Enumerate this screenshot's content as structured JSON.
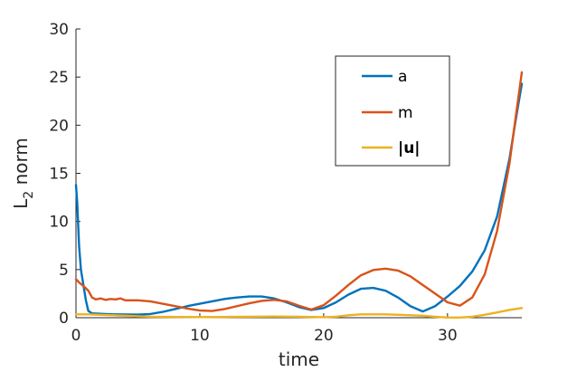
{
  "chart_data": {
    "type": "line",
    "xlabel": "time",
    "ylabel": "L",
    "ylabel_subscript": "2",
    "ylabel_suffix": " norm",
    "xlim": [
      0,
      36
    ],
    "ylim": [
      0,
      30
    ],
    "xticks": [
      0,
      10,
      20,
      30
    ],
    "yticks": [
      0,
      5,
      10,
      15,
      20,
      25,
      30
    ],
    "xtick_labels": [
      "0",
      "10",
      "20",
      "30"
    ],
    "ytick_labels": [
      "0",
      "5",
      "10",
      "15",
      "20",
      "25",
      "30"
    ],
    "grid": false,
    "legend_position": "top-right",
    "series": [
      {
        "name": "a",
        "color": "#0072BD",
        "points": [
          [
            0,
            13.8
          ],
          [
            0.1,
            12.0
          ],
          [
            0.25,
            7.5
          ],
          [
            0.4,
            5.0
          ],
          [
            0.6,
            3.4
          ],
          [
            0.8,
            1.8
          ],
          [
            1.0,
            0.7
          ],
          [
            1.3,
            0.45
          ],
          [
            2,
            0.4
          ],
          [
            3,
            0.35
          ],
          [
            4,
            0.33
          ],
          [
            5,
            0.32
          ],
          [
            6,
            0.38
          ],
          [
            7,
            0.6
          ],
          [
            8,
            0.9
          ],
          [
            9,
            1.2
          ],
          [
            10,
            1.45
          ],
          [
            11,
            1.7
          ],
          [
            12,
            1.95
          ],
          [
            13,
            2.1
          ],
          [
            14,
            2.2
          ],
          [
            15,
            2.2
          ],
          [
            16,
            2.0
          ],
          [
            17,
            1.6
          ],
          [
            18,
            1.1
          ],
          [
            19,
            0.8
          ],
          [
            20,
            1.0
          ],
          [
            21,
            1.6
          ],
          [
            22,
            2.4
          ],
          [
            23,
            3.0
          ],
          [
            24,
            3.1
          ],
          [
            25,
            2.8
          ],
          [
            26,
            2.1
          ],
          [
            27,
            1.2
          ],
          [
            28,
            0.65
          ],
          [
            29,
            1.2
          ],
          [
            30,
            2.2
          ],
          [
            31,
            3.3
          ],
          [
            32,
            4.8
          ],
          [
            33,
            7.0
          ],
          [
            34,
            10.5
          ],
          [
            35,
            16.5
          ],
          [
            35.5,
            20.5
          ],
          [
            36,
            24.3
          ]
        ]
      },
      {
        "name": "m",
        "color": "#D95319",
        "points": [
          [
            0,
            4.0
          ],
          [
            0.3,
            3.6
          ],
          [
            0.6,
            3.3
          ],
          [
            1.0,
            2.8
          ],
          [
            1.3,
            2.1
          ],
          [
            1.6,
            1.9
          ],
          [
            2,
            2.0
          ],
          [
            2.4,
            1.85
          ],
          [
            2.8,
            1.95
          ],
          [
            3.2,
            1.9
          ],
          [
            3.6,
            2.0
          ],
          [
            4,
            1.8
          ],
          [
            5,
            1.8
          ],
          [
            6,
            1.7
          ],
          [
            7,
            1.45
          ],
          [
            8,
            1.2
          ],
          [
            9,
            0.95
          ],
          [
            10,
            0.75
          ],
          [
            11,
            0.7
          ],
          [
            12,
            0.9
          ],
          [
            13,
            1.2
          ],
          [
            14,
            1.5
          ],
          [
            15,
            1.75
          ],
          [
            16,
            1.85
          ],
          [
            17,
            1.7
          ],
          [
            18,
            1.25
          ],
          [
            19,
            0.85
          ],
          [
            20,
            1.3
          ],
          [
            21,
            2.3
          ],
          [
            22,
            3.4
          ],
          [
            23,
            4.4
          ],
          [
            24,
            4.95
          ],
          [
            25,
            5.1
          ],
          [
            26,
            4.9
          ],
          [
            27,
            4.3
          ],
          [
            28,
            3.4
          ],
          [
            29,
            2.5
          ],
          [
            30,
            1.6
          ],
          [
            31,
            1.25
          ],
          [
            32,
            2.1
          ],
          [
            33,
            4.5
          ],
          [
            34,
            9.0
          ],
          [
            35,
            16.0
          ],
          [
            35.5,
            20.8
          ],
          [
            36,
            25.5
          ]
        ]
      },
      {
        "name": "|u|",
        "color": "#EDB120",
        "points": [
          [
            0,
            0.35
          ],
          [
            1,
            0.35
          ],
          [
            2,
            0.3
          ],
          [
            3,
            0.25
          ],
          [
            4,
            0.2
          ],
          [
            5,
            0.15
          ],
          [
            6,
            0.1
          ],
          [
            8,
            0.08
          ],
          [
            10,
            0.06
          ],
          [
            12,
            0.08
          ],
          [
            14,
            0.1
          ],
          [
            16,
            0.12
          ],
          [
            18,
            0.1
          ],
          [
            20,
            0.05
          ],
          [
            21,
            0.1
          ],
          [
            22,
            0.25
          ],
          [
            23,
            0.35
          ],
          [
            24,
            0.35
          ],
          [
            25,
            0.35
          ],
          [
            26,
            0.3
          ],
          [
            27,
            0.25
          ],
          [
            28,
            0.2
          ],
          [
            29,
            0.1
          ],
          [
            30,
            0.02
          ],
          [
            31,
            0.02
          ],
          [
            32,
            0.1
          ],
          [
            33,
            0.3
          ],
          [
            34,
            0.55
          ],
          [
            35,
            0.8
          ],
          [
            36,
            1.0
          ]
        ]
      }
    ]
  }
}
